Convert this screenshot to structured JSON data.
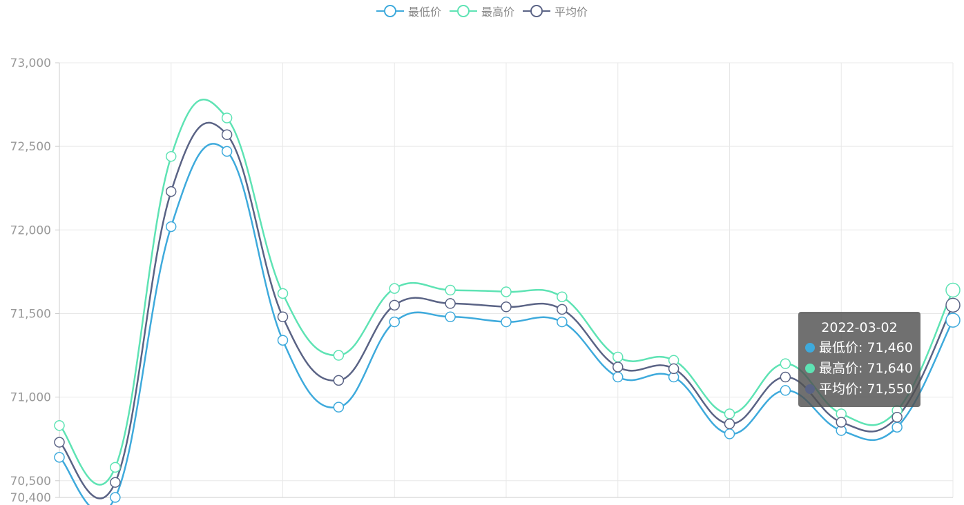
{
  "legend": [
    {
      "label": "最低价",
      "color": "#3eaadc"
    },
    {
      "label": "最高价",
      "color": "#5ee3b4"
    },
    {
      "label": "平均价",
      "color": "#5a6385"
    }
  ],
  "tooltip": {
    "title": "2022-03-02",
    "rows": [
      {
        "text": "最低价: 71,460",
        "color": "#3eaadc"
      },
      {
        "text": "最高价: 71,640",
        "color": "#5ee3b4"
      },
      {
        "text": "平均价: 71,550",
        "color": "#5a6385"
      }
    ]
  },
  "chart_data": {
    "type": "line",
    "smooth": true,
    "ylim": [
      70400,
      73000
    ],
    "yticks": [
      {
        "value": 70400,
        "label": "70,400"
      },
      {
        "value": 70500,
        "label": "70,500"
      },
      {
        "value": 71000,
        "label": "71,000"
      },
      {
        "value": 71500,
        "label": "71,500"
      },
      {
        "value": 72000,
        "label": "72,000"
      },
      {
        "value": 72500,
        "label": "72,500"
      },
      {
        "value": 73000,
        "label": "73,000"
      }
    ],
    "grid": true,
    "legend_position": "top-center",
    "highlight_index": 16,
    "series": [
      {
        "name": "最低价",
        "color": "#3eaadc",
        "values": [
          70640,
          70400,
          72020,
          72470,
          71340,
          70940,
          71450,
          71480,
          71450,
          71450,
          71120,
          71120,
          70780,
          71040,
          70800,
          70820,
          71460
        ]
      },
      {
        "name": "最高价",
        "color": "#5ee3b4",
        "values": [
          70830,
          70580,
          72440,
          72670,
          71620,
          71250,
          71650,
          71640,
          71630,
          71600,
          71240,
          71220,
          70900,
          71200,
          70900,
          70920,
          71640
        ]
      },
      {
        "name": "平均价",
        "color": "#5a6385",
        "values": [
          70730,
          70490,
          72230,
          72570,
          71480,
          71100,
          71550,
          71560,
          71540,
          71525,
          71180,
          71170,
          70840,
          71120,
          70850,
          70880,
          71550
        ]
      }
    ]
  }
}
